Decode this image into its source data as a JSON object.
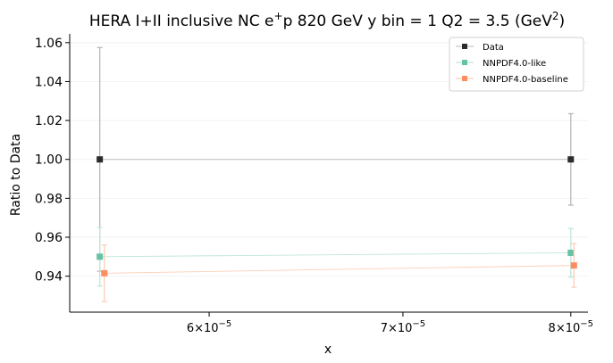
{
  "chart_data": {
    "type": "line",
    "title_parts": {
      "main": "HERA I+II inclusive NC e",
      "sup1": "+",
      "mid": "p 820 GeV y bin = 1 Q2 = 3.5 (GeV",
      "sup2": "2",
      "end": ")"
    },
    "xlabel": "x",
    "ylabel": "Ratio to Data",
    "x_scale": "log",
    "xlim": [
      5.37e-05,
      8.11e-05
    ],
    "ylim": [
      0.9215,
      1.0645
    ],
    "x_ticks": [
      {
        "value": 6e-05,
        "mantissa": "6",
        "exponent": "−5"
      },
      {
        "value": 7e-05,
        "mantissa": "7",
        "exponent": "−5"
      },
      {
        "value": 8e-05,
        "mantissa": "8",
        "exponent": "−5"
      }
    ],
    "x_tick_base": "×10",
    "y_ticks": [
      0.94,
      0.96,
      0.98,
      1.0,
      1.02,
      1.04,
      1.06
    ],
    "y_tick_labels": [
      "0.94",
      "0.96",
      "0.98",
      "1.00",
      "1.02",
      "1.04",
      "1.06"
    ],
    "grid": "faint horizontal",
    "legend_position": "top-right",
    "series": [
      {
        "name": "Data",
        "color": "#2b2b2b",
        "line_color": "#c8c8c8",
        "x": [
          5.5e-05,
          8e-05
        ],
        "y": [
          1.0,
          1.0
        ],
        "yerr": [
          0.0575,
          0.0235
        ]
      },
      {
        "name": "NNPDF4.0-like",
        "color": "#66c2a5",
        "line_color": "#bfe6d9",
        "x": [
          5.5e-05,
          8e-05
        ],
        "y": [
          0.95,
          0.952
        ],
        "yerr": [
          0.015,
          0.0125
        ]
      },
      {
        "name": "NNPDF4.0-baseline",
        "color": "#fc8d62",
        "line_color": "#fdcfb9",
        "x": [
          5.52e-05,
          8.02e-05
        ],
        "y": [
          0.9415,
          0.9455
        ],
        "yerr": [
          0.0145,
          0.0112
        ]
      }
    ]
  }
}
